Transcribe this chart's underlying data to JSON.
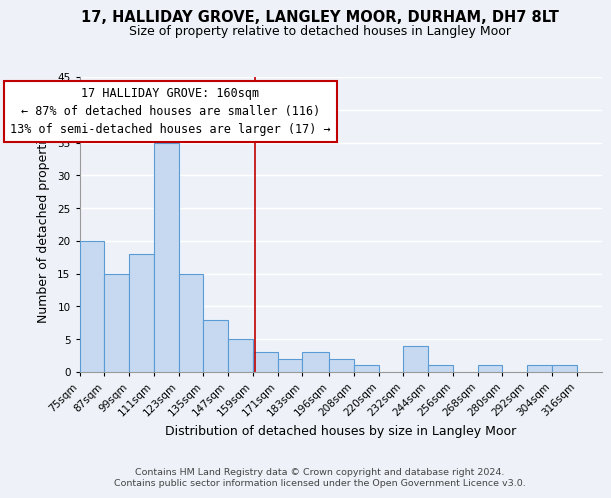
{
  "title": "17, HALLIDAY GROVE, LANGLEY MOOR, DURHAM, DH7 8LT",
  "subtitle": "Size of property relative to detached houses in Langley Moor",
  "xlabel": "Distribution of detached houses by size in Langley Moor",
  "ylabel": "Number of detached properties",
  "footnote1": "Contains HM Land Registry data © Crown copyright and database right 2024.",
  "footnote2": "Contains public sector information licensed under the Open Government Licence v3.0.",
  "annotation_title": "17 HALLIDAY GROVE: 160sqm",
  "annotation_line1": "← 87% of detached houses are smaller (116)",
  "annotation_line2": "13% of semi-detached houses are larger (17) →",
  "bar_left_edges": [
    75,
    87,
    99,
    111,
    123,
    135,
    147,
    159,
    171,
    183,
    196,
    208,
    220,
    232,
    244,
    256,
    268,
    280,
    292,
    304
  ],
  "bar_widths": [
    12,
    12,
    12,
    12,
    12,
    12,
    12,
    12,
    12,
    13,
    12,
    12,
    12,
    12,
    12,
    12,
    12,
    12,
    12,
    12
  ],
  "bar_heights": [
    20,
    15,
    18,
    35,
    15,
    8,
    5,
    3,
    2,
    3,
    2,
    1,
    0,
    4,
    1,
    0,
    1,
    0,
    1,
    1
  ],
  "tick_labels": [
    "75sqm",
    "87sqm",
    "99sqm",
    "111sqm",
    "123sqm",
    "135sqm",
    "147sqm",
    "159sqm",
    "171sqm",
    "183sqm",
    "196sqm",
    "208sqm",
    "220sqm",
    "232sqm",
    "244sqm",
    "256sqm",
    "268sqm",
    "280sqm",
    "292sqm",
    "304sqm",
    "316sqm"
  ],
  "tick_positions": [
    75,
    87,
    99,
    111,
    123,
    135,
    147,
    159,
    171,
    183,
    196,
    208,
    220,
    232,
    244,
    256,
    268,
    280,
    292,
    304,
    316
  ],
  "ytick_values": [
    0,
    5,
    10,
    15,
    20,
    25,
    30,
    35,
    40,
    45
  ],
  "bar_color": "#c6d9f0",
  "bar_edge_color": "#5b9bd5",
  "vline_x": 160,
  "vline_color": "#c00000",
  "annotation_box_edge": "#c00000",
  "annotation_box_fill": "#ffffff",
  "ylim": [
    0,
    45
  ],
  "xlim": [
    75,
    328
  ],
  "bg_color": "#eef2f8",
  "grid_color": "#ffffff",
  "title_fontsize": 10.5,
  "subtitle_fontsize": 9,
  "axis_label_fontsize": 9,
  "tick_fontsize": 7.5,
  "annotation_title_fontsize": 9,
  "annotation_body_fontsize": 8.5,
  "footnote_fontsize": 6.8
}
